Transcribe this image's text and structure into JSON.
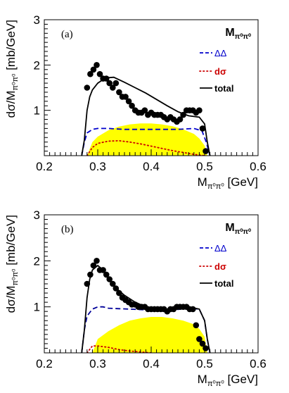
{
  "chart_data": [
    {
      "type": "line",
      "panel_label": "(a)",
      "title_main": "M",
      "title_sub": "π⁰π⁰",
      "xlabel_main": "M",
      "xlabel_sub": "π⁰π⁰",
      "xlabel_unit": " [GeV]",
      "ylabel_main": "dσ/M",
      "ylabel_sub": "π⁰π⁰",
      "ylabel_unit": " [mb/GeV]",
      "xlim": [
        0.2,
        0.6
      ],
      "ylim": [
        0,
        3
      ],
      "x_ticks": [
        0.2,
        0.3,
        0.4,
        0.5,
        0.6
      ],
      "x_tick_labels": [
        "0.2",
        "0.3",
        "0.4",
        "0.5",
        "0.6"
      ],
      "y_ticks": [
        1,
        2,
        3
      ],
      "y_tick_labels": [
        "1",
        "2",
        "3"
      ],
      "legend_position": "top-right",
      "legend": [
        {
          "label": "ΔΔ",
          "style": "dashed",
          "color": "#0000cc"
        },
        {
          "label": "dσ",
          "style": "dotted",
          "color": "#cc0000"
        },
        {
          "label": "total",
          "style": "solid",
          "color": "#000000"
        }
      ],
      "series": [
        {
          "name": "total",
          "kind": "line",
          "color": "#000000",
          "x": [
            0.27,
            0.275,
            0.28,
            0.285,
            0.29,
            0.3,
            0.31,
            0.32,
            0.33,
            0.35,
            0.37,
            0.39,
            0.41,
            0.43,
            0.45,
            0.47,
            0.49,
            0.5,
            0.505,
            0.51
          ],
          "y": [
            0,
            0.35,
            1.0,
            1.3,
            1.45,
            1.6,
            1.68,
            1.72,
            1.73,
            1.62,
            1.5,
            1.38,
            1.24,
            1.1,
            0.97,
            0.88,
            0.85,
            0.7,
            0.3,
            0
          ]
        },
        {
          "name": "ΔΔ",
          "kind": "dashed",
          "color": "#0000cc",
          "x": [
            0.27,
            0.275,
            0.28,
            0.29,
            0.3,
            0.32,
            0.35,
            0.4,
            0.45,
            0.48,
            0.495,
            0.503,
            0.51
          ],
          "y": [
            0,
            0.3,
            0.5,
            0.58,
            0.6,
            0.6,
            0.58,
            0.58,
            0.58,
            0.6,
            0.55,
            0.3,
            0
          ]
        },
        {
          "name": "dσ",
          "kind": "dotted",
          "color": "#cc0000",
          "x": [
            0.28,
            0.29,
            0.3,
            0.32,
            0.34,
            0.36,
            0.38,
            0.4,
            0.42,
            0.44,
            0.46,
            0.48,
            0.5
          ],
          "y": [
            0,
            0.18,
            0.27,
            0.32,
            0.33,
            0.3,
            0.26,
            0.21,
            0.16,
            0.11,
            0.07,
            0.03,
            0
          ]
        },
        {
          "name": "phase space",
          "kind": "fill",
          "color": "#ffff00",
          "x": [
            0.28,
            0.29,
            0.3,
            0.32,
            0.34,
            0.36,
            0.38,
            0.4,
            0.42,
            0.44,
            0.46,
            0.48,
            0.49,
            0.5,
            0.505
          ],
          "y": [
            0,
            0.3,
            0.42,
            0.56,
            0.64,
            0.69,
            0.71,
            0.71,
            0.69,
            0.65,
            0.58,
            0.48,
            0.38,
            0.22,
            0
          ]
        },
        {
          "name": "data",
          "kind": "markers",
          "color": "#000000",
          "x": [
            0.28,
            0.286,
            0.292,
            0.298,
            0.304,
            0.31,
            0.316,
            0.322,
            0.328,
            0.334,
            0.34,
            0.346,
            0.352,
            0.358,
            0.364,
            0.37,
            0.376,
            0.382,
            0.388,
            0.394,
            0.4,
            0.406,
            0.412,
            0.418,
            0.424,
            0.43,
            0.436,
            0.442,
            0.448,
            0.454,
            0.46,
            0.466,
            0.472,
            0.478,
            0.484,
            0.49,
            0.496,
            0.502
          ],
          "y": [
            1.5,
            1.8,
            1.9,
            2.0,
            1.8,
            1.7,
            1.7,
            1.6,
            1.5,
            1.6,
            1.4,
            1.3,
            1.3,
            1.2,
            1.1,
            1.0,
            0.95,
            0.95,
            1.0,
            0.9,
            0.95,
            0.9,
            0.9,
            0.9,
            0.85,
            0.8,
            0.85,
            0.8,
            0.75,
            0.8,
            0.9,
            1.0,
            1.0,
            1.0,
            0.95,
            1.0,
            0.6,
            0.1
          ]
        }
      ]
    },
    {
      "type": "line",
      "panel_label": "(b)",
      "title_main": "M",
      "title_sub": "π⁰π⁰",
      "xlabel_main": "M",
      "xlabel_sub": "π⁰π⁰",
      "xlabel_unit": " [GeV]",
      "ylabel_main": "dσ/M",
      "ylabel_sub": "π⁰π⁰",
      "ylabel_unit": " [mb/GeV]",
      "xlim": [
        0.2,
        0.6
      ],
      "ylim": [
        0,
        3
      ],
      "x_ticks": [
        0.2,
        0.3,
        0.4,
        0.5,
        0.6
      ],
      "x_tick_labels": [
        "0.2",
        "0.3",
        "0.4",
        "0.5",
        "0.6"
      ],
      "y_ticks": [
        1,
        2,
        3
      ],
      "y_tick_labels": [
        "1",
        "2",
        "3"
      ],
      "legend_position": "top-right",
      "legend": [
        {
          "label": "ΔΔ",
          "style": "dashed",
          "color": "#0000cc"
        },
        {
          "label": "dσ",
          "style": "dotted",
          "color": "#cc0000"
        },
        {
          "label": "total",
          "style": "solid",
          "color": "#000000"
        }
      ],
      "series": [
        {
          "name": "total",
          "kind": "line",
          "color": "#000000",
          "x": [
            0.27,
            0.275,
            0.28,
            0.285,
            0.29,
            0.3,
            0.31,
            0.32,
            0.33,
            0.35,
            0.37,
            0.39,
            0.41,
            0.43,
            0.45,
            0.47,
            0.49,
            0.5,
            0.505,
            0.51
          ],
          "y": [
            0,
            0.5,
            1.2,
            1.6,
            1.8,
            1.9,
            1.8,
            1.6,
            1.45,
            1.25,
            1.1,
            1.0,
            0.95,
            0.93,
            0.95,
            1.0,
            0.95,
            0.7,
            0.3,
            0
          ]
        },
        {
          "name": "ΔΔ",
          "kind": "dashed",
          "color": "#000099",
          "x": [
            0.27,
            0.275,
            0.28,
            0.29,
            0.3,
            0.31,
            0.32,
            0.34,
            0.36,
            0.4,
            0.44,
            0.47,
            0.49,
            0.5,
            0.505,
            0.51
          ],
          "y": [
            0,
            0.5,
            0.8,
            0.95,
            1.0,
            1.0,
            0.97,
            0.96,
            0.95,
            0.93,
            0.93,
            0.97,
            0.95,
            0.7,
            0.3,
            0
          ]
        },
        {
          "name": "dσ",
          "kind": "dotted",
          "color": "#cc0000",
          "x": [
            0.28,
            0.29,
            0.3,
            0.32,
            0.34,
            0.36,
            0.38,
            0.4
          ],
          "y": [
            0,
            0.15,
            0.15,
            0.12,
            0.07,
            0.04,
            0.02,
            0
          ]
        },
        {
          "name": "phase space",
          "kind": "fill",
          "color": "#ffff00",
          "x": [
            0.29,
            0.3,
            0.32,
            0.34,
            0.36,
            0.38,
            0.4,
            0.42,
            0.44,
            0.46,
            0.48,
            0.49,
            0.5,
            0.505
          ],
          "y": [
            0,
            0.3,
            0.47,
            0.6,
            0.7,
            0.75,
            0.78,
            0.78,
            0.75,
            0.7,
            0.62,
            0.52,
            0.35,
            0
          ]
        },
        {
          "name": "data",
          "kind": "markers",
          "color": "#000000",
          "x": [
            0.28,
            0.286,
            0.292,
            0.298,
            0.304,
            0.31,
            0.316,
            0.322,
            0.328,
            0.334,
            0.34,
            0.346,
            0.352,
            0.358,
            0.364,
            0.37,
            0.376,
            0.382,
            0.388,
            0.394,
            0.4,
            0.406,
            0.412,
            0.418,
            0.424,
            0.43,
            0.436,
            0.442,
            0.448,
            0.454,
            0.46,
            0.466,
            0.472,
            0.478,
            0.484,
            0.49,
            0.496,
            0.502
          ],
          "y": [
            1.5,
            1.7,
            1.9,
            2.0,
            1.8,
            1.8,
            1.7,
            1.6,
            1.5,
            1.4,
            1.3,
            1.2,
            1.15,
            1.1,
            1.05,
            1.05,
            1.0,
            1.0,
            1.0,
            0.95,
            0.95,
            0.95,
            0.95,
            0.95,
            0.95,
            0.9,
            0.95,
            0.95,
            1.0,
            1.0,
            1.0,
            1.0,
            0.95,
            0.95,
            0.6,
            0.3,
            0.2,
            0.1
          ]
        }
      ]
    }
  ]
}
